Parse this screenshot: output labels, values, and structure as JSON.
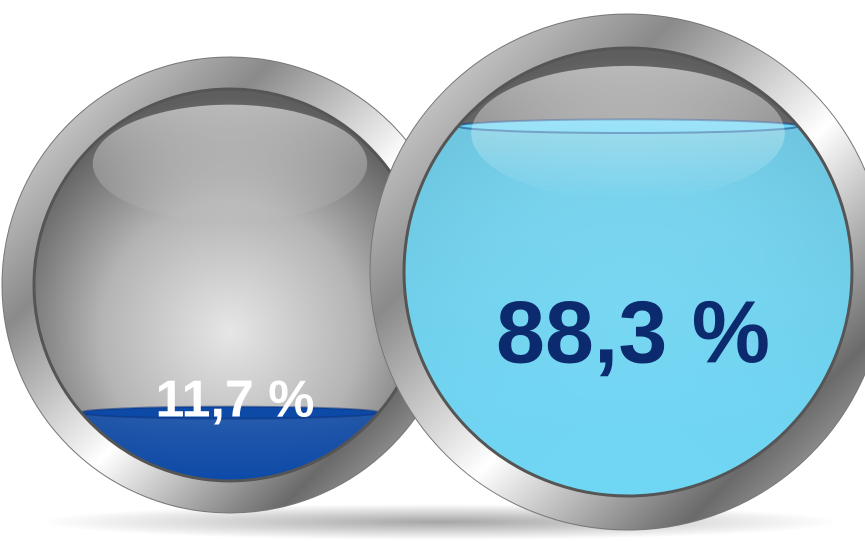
{
  "chart_data": {
    "type": "liquid",
    "values": [
      11.7,
      88.3
    ],
    "value_labels": [
      "11,7 %",
      "88,3 %"
    ],
    "colors": [
      "#0d4aa8",
      "#6fd6f4"
    ],
    "label_colors": [
      "#ffffff",
      "#0c2a6e"
    ],
    "ylim": [
      0,
      100
    ]
  }
}
